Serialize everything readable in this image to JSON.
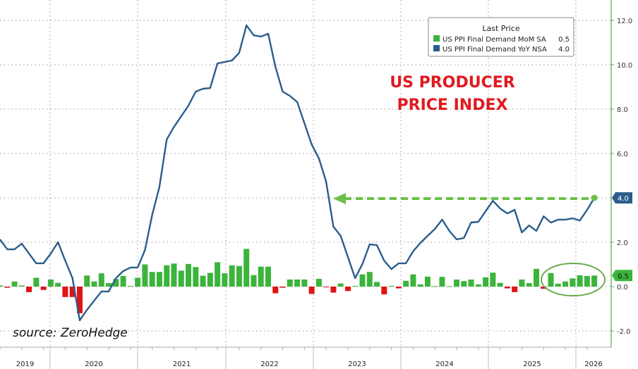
{
  "colors": {
    "mom": "#3cb43c",
    "mom_negative": "#e01414",
    "yoy": "#2b5d8c",
    "title": "#e0191e",
    "annotation": "#6cc04a",
    "axis": "#5aa84a"
  },
  "chart_data": {
    "type": "bar+line",
    "title": "US PRODUCER PRICE INDEX",
    "title_lines": [
      "US PRODUCER",
      "PRICE INDEX"
    ],
    "source": "source: ZeroHedge",
    "legend": {
      "header": "Last Price",
      "placement": "top-right"
    },
    "x_tick_labels": [
      "2019",
      "2020",
      "2021",
      "2022",
      "2023",
      "2024",
      "2025",
      "2026"
    ],
    "y_axis": {
      "side": "right",
      "ylim": [
        -2.5,
        12.5
      ],
      "ticks": [
        -2.0,
        0.0,
        2.0,
        4.0,
        6.0,
        8.0,
        10.0,
        12.0
      ],
      "tick_labels": [
        "-2.0",
        "0.0",
        "2.0",
        "4.0",
        "6.0",
        "8.0",
        "10.0",
        "12.0"
      ],
      "grid": true
    },
    "series": [
      {
        "name": "US PPI Final Demand MoM SA",
        "last": "0.5",
        "type": "bar",
        "values": [
          0.05,
          -0.05,
          0.23,
          0.05,
          -0.25,
          0.4,
          -0.15,
          0.32,
          0.17,
          -0.47,
          -0.47,
          -1.2,
          0.5,
          0.23,
          0.6,
          0.16,
          0.34,
          0.48,
          0.03,
          0.4,
          1.0,
          0.66,
          0.66,
          0.96,
          1.04,
          0.72,
          1.02,
          0.88,
          0.49,
          0.62,
          1.1,
          0.6,
          0.96,
          0.93,
          1.7,
          0.52,
          0.9,
          0.9,
          -0.3,
          -0.05,
          0.32,
          0.32,
          0.32,
          -0.33,
          0.35,
          -0.03,
          -0.27,
          0.14,
          -0.2,
          0.03,
          0.55,
          0.66,
          0.21,
          -0.35,
          0.03,
          -0.08,
          0.26,
          0.55,
          0.1,
          0.45,
          0.02,
          0.44,
          0.02,
          0.32,
          0.25,
          0.32,
          0.1,
          0.42,
          0.63,
          0.17,
          -0.08,
          -0.25,
          0.32,
          0.16,
          0.8,
          -0.1,
          0.61,
          0.13,
          0.23,
          0.37,
          0.51,
          0.48,
          0.5
        ]
      },
      {
        "name": "US PPI Final Demand YoY NSA",
        "last": "4.0",
        "type": "line",
        "values": [
          2.13,
          1.68,
          1.68,
          1.94,
          1.49,
          1.05,
          1.05,
          1.49,
          2.0,
          1.17,
          0.38,
          -1.52,
          -1.05,
          -0.63,
          -0.22,
          -0.22,
          0.38,
          0.7,
          0.86,
          0.86,
          1.65,
          3.24,
          4.5,
          6.63,
          7.2,
          7.68,
          8.16,
          8.79,
          8.92,
          8.95,
          10.06,
          10.13,
          10.19,
          10.54,
          11.78,
          11.33,
          11.27,
          11.4,
          9.9,
          8.79,
          8.6,
          8.32,
          7.37,
          6.41,
          5.78,
          4.73,
          2.7,
          2.29,
          1.33,
          0.38,
          1.02,
          1.9,
          1.87,
          1.17,
          0.79,
          1.05,
          1.05,
          1.59,
          1.97,
          2.29,
          2.6,
          3.02,
          2.51,
          2.13,
          2.19,
          2.89,
          2.92,
          3.4,
          3.87,
          3.52,
          3.3,
          3.46,
          2.44,
          2.76,
          2.51,
          3.17,
          2.89,
          3.02,
          3.02,
          3.08,
          2.98,
          3.46,
          4.0
        ]
      }
    ]
  }
}
